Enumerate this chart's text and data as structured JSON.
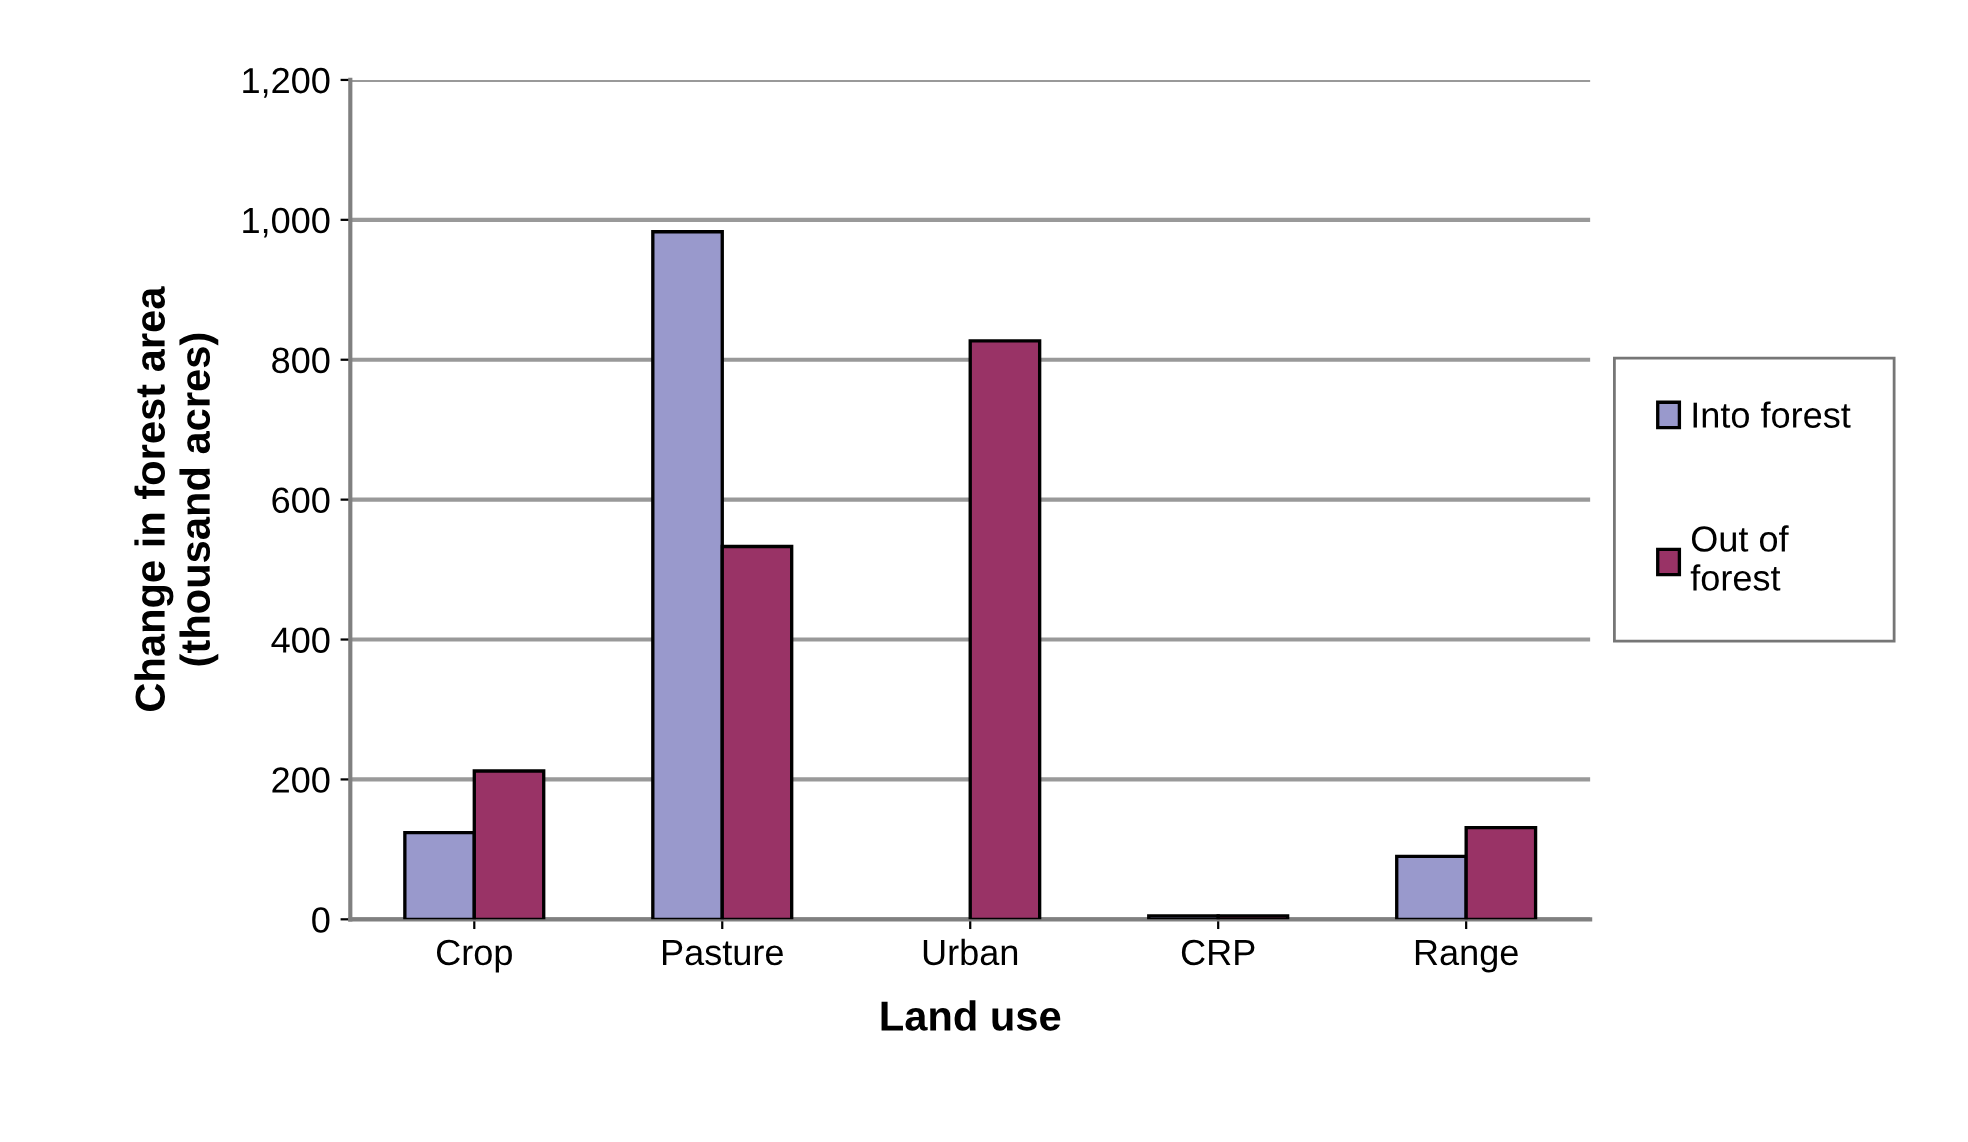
{
  "chart_data": {
    "type": "bar",
    "xlabel": "Land use",
    "ylabel": "Change in forest area\n(thousand acres)",
    "categories": [
      "Crop",
      "Pasture",
      "Urban",
      "CRP",
      "Range"
    ],
    "series": [
      {
        "name": "Into forest",
        "color": "#9999cc",
        "values": [
          124,
          983,
          null,
          5,
          90
        ]
      },
      {
        "name": "Out of forest",
        "color": "#993366",
        "values": [
          212,
          533,
          827,
          5,
          131
        ]
      }
    ],
    "ylim": [
      0,
      1200
    ],
    "yticks": [
      0,
      {
        "value": 200,
        "label": "200"
      },
      {
        "value": 400,
        "label": "400"
      },
      {
        "value": 600,
        "label": "600"
      },
      {
        "value": 800,
        "label": "800"
      },
      {
        "value": 1000,
        "label": "1,000"
      },
      {
        "value": 1200,
        "label": "1,200"
      }
    ],
    "grid": "y",
    "legend": "right"
  }
}
